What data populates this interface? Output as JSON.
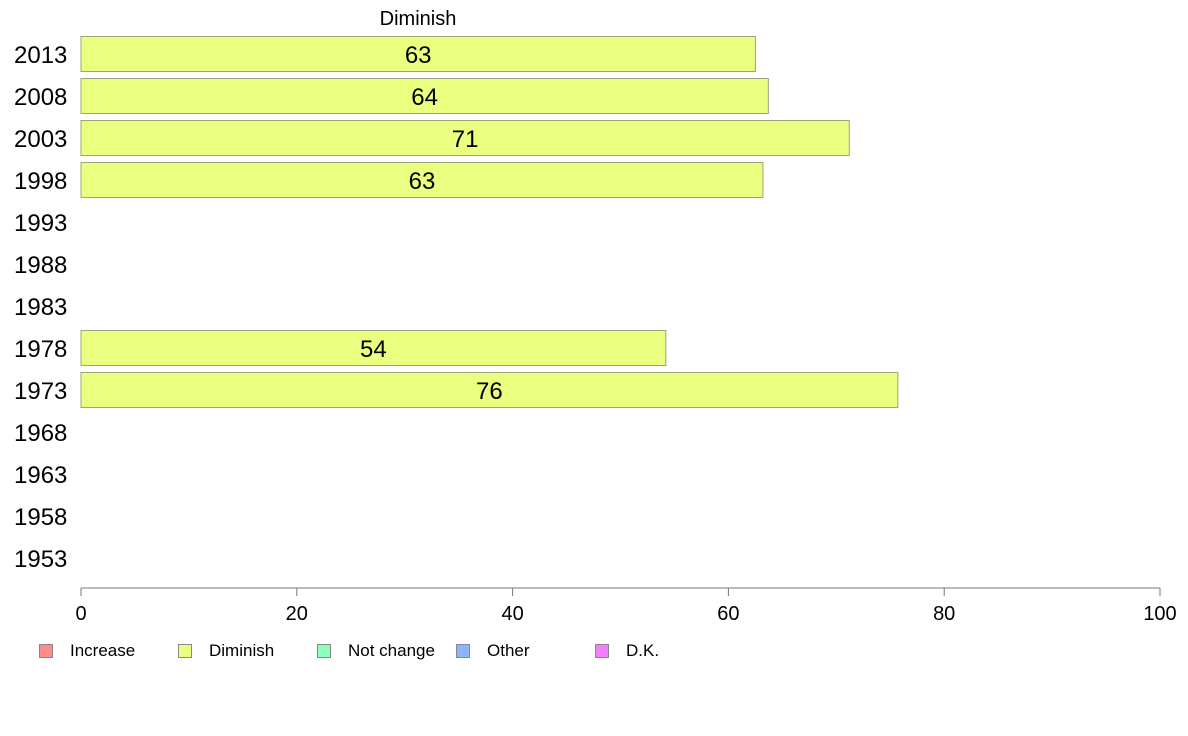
{
  "chart_data": {
    "type": "bar",
    "orientation": "horizontal",
    "title": "",
    "xlabel": "",
    "ylabel": "",
    "xlim": [
      0,
      100
    ],
    "x_ticks": [
      0,
      20,
      40,
      60,
      80,
      100
    ],
    "categories": [
      "2013",
      "2008",
      "2003",
      "1998",
      "1993",
      "1988",
      "1983",
      "1978",
      "1973",
      "1968",
      "1963",
      "1958",
      "1953"
    ],
    "series": [
      {
        "name": "Diminish",
        "color": "#eaff80",
        "values": [
          63,
          64,
          71,
          63,
          null,
          null,
          null,
          54,
          76,
          null,
          null,
          null,
          null
        ],
        "bar_values": [
          62.5,
          63.7,
          71.2,
          63.2,
          null,
          null,
          null,
          54.2,
          75.7,
          null,
          null,
          null,
          null
        ]
      }
    ],
    "series_title": "Diminish",
    "grid": false,
    "legend": {
      "placement": "bottom",
      "items": [
        {
          "label": "Increase",
          "color": "#ff8c8c"
        },
        {
          "label": "Diminish",
          "color": "#eaff80"
        },
        {
          "label": "Not change",
          "color": "#8cffbe"
        },
        {
          "label": "Other",
          "color": "#8cb4ff"
        },
        {
          "label": "D.K.",
          "color": "#f080ff"
        }
      ]
    }
  }
}
